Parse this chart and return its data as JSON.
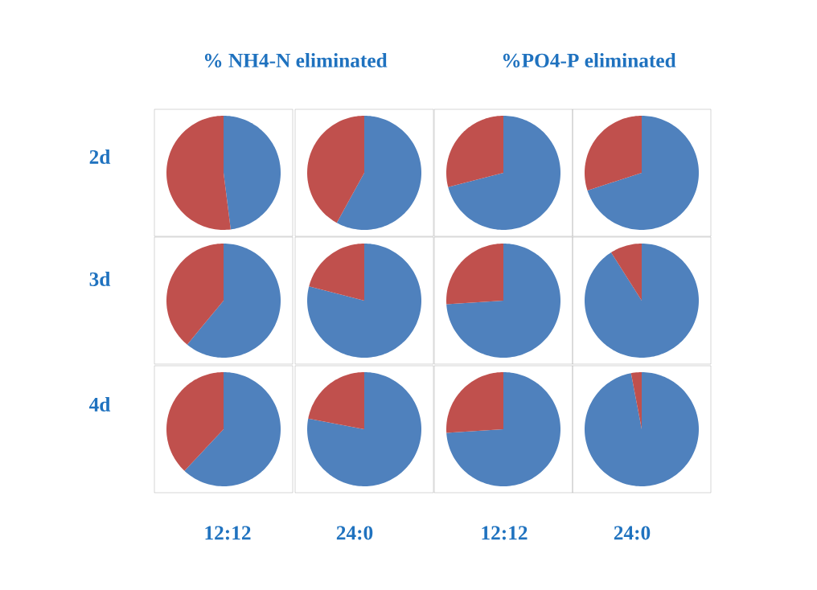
{
  "chart_data": [
    {
      "type": "other",
      "annotations": [
        "% NH4-N eliminated",
        "%PO4-P eliminated",
        "2d",
        "3d",
        "4d",
        "12:12",
        "24:0",
        "12:12",
        "24:0"
      ]
    },
    {
      "type": "pie",
      "categories": [
        null,
        null
      ],
      "values": [
        48,
        52
      ],
      "colors": [
        "#4f81bd",
        "#c0504d"
      ]
    },
    {
      "type": "pie",
      "categories": [
        null,
        null
      ],
      "values": [
        58,
        42
      ],
      "colors": [
        "#4f81bd",
        "#c0504d"
      ]
    },
    {
      "type": "pie",
      "categories": [
        null,
        null
      ],
      "values": [
        71,
        29
      ],
      "colors": [
        "#4f81bd",
        "#c0504d"
      ]
    },
    {
      "type": "pie",
      "categories": [
        null,
        null
      ],
      "values": [
        70,
        30
      ],
      "colors": [
        "#4f81bd",
        "#c0504d"
      ]
    },
    {
      "type": "pie",
      "categories": [
        null,
        null
      ],
      "values": [
        61,
        39
      ],
      "colors": [
        "#4f81bd",
        "#c0504d"
      ]
    },
    {
      "type": "pie",
      "categories": [
        null,
        null
      ],
      "values": [
        79,
        21
      ],
      "colors": [
        "#4f81bd",
        "#c0504d"
      ]
    },
    {
      "type": "pie",
      "categories": [
        null,
        null
      ],
      "values": [
        74,
        26
      ],
      "colors": [
        "#4f81bd",
        "#c0504d"
      ]
    },
    {
      "type": "pie",
      "categories": [
        null,
        null
      ],
      "values": [
        91,
        9
      ],
      "colors": [
        "#4f81bd",
        "#c0504d"
      ]
    },
    {
      "type": "pie",
      "categories": [
        null,
        null
      ],
      "values": [
        62,
        38
      ],
      "colors": [
        "#4f81bd",
        "#c0504d"
      ]
    },
    {
      "type": "pie",
      "categories": [
        null,
        null
      ],
      "values": [
        78,
        22
      ],
      "colors": [
        "#4f81bd",
        "#c0504d"
      ]
    },
    {
      "type": "pie",
      "categories": [
        null,
        null
      ],
      "values": [
        74,
        26
      ],
      "colors": [
        "#4f81bd",
        "#c0504d"
      ]
    },
    {
      "type": "pie",
      "categories": [
        null,
        null
      ],
      "values": [
        97,
        3
      ],
      "colors": [
        "#4f81bd",
        "#c0504d"
      ]
    }
  ]
}
